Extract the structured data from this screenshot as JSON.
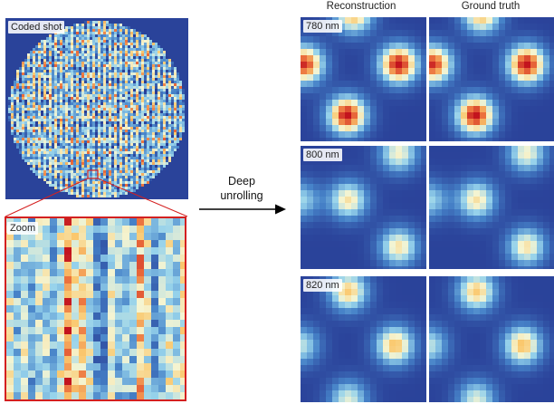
{
  "labels": {
    "coded_shot": "Coded shot",
    "zoom": "Zoom",
    "arrow_line1": "Deep",
    "arrow_line2": "unrolling",
    "col_reconstruction": "Reconstruction",
    "col_ground_truth": "Ground truth",
    "rows": [
      "780 nm",
      "800 nm",
      "820 nm"
    ]
  },
  "colors": {
    "background_blue": "#283d96",
    "zoom_border": "#d42020",
    "peak_red": "#c8141e"
  }
}
